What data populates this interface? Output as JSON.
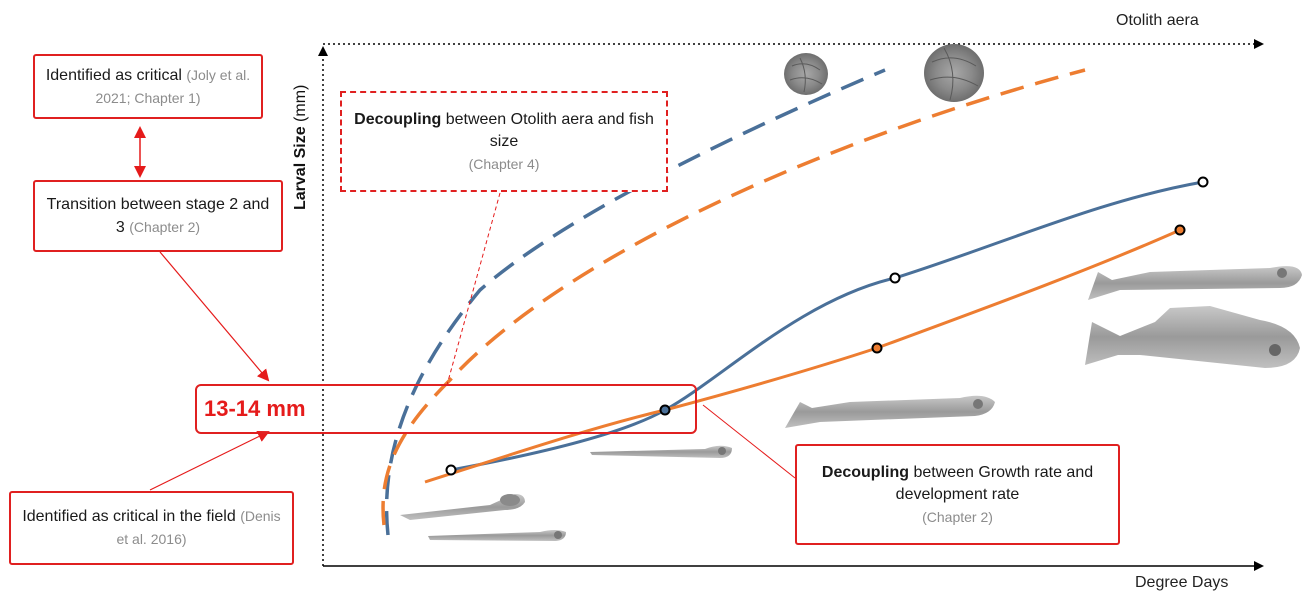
{
  "axes": {
    "x_label": "Degree Days",
    "y_label_bold": "Larval Size",
    "y_label_unit": " (mm)",
    "top_label": "Otolith aera"
  },
  "threshold": {
    "label": "13-14 mm"
  },
  "boxes": {
    "critical_joly": {
      "main": "Identified as critical ",
      "ref": "(Joly et al. 2021; Chapter 1)"
    },
    "transition": {
      "main": "Transition between stage 2 and 3 ",
      "ref": "(Chapter 2)"
    },
    "critical_field": {
      "main": "Identified as critical in the field ",
      "ref": "(Denis et al. 2016)"
    },
    "decoupling_otolith": {
      "bold": "Decoupling",
      "rest": " between Otolith aera and fish size",
      "ref": "(Chapter 4)"
    },
    "decoupling_growth": {
      "bold": "Decoupling",
      "rest": " between Growth rate and development rate",
      "ref": "(Chapter 2)"
    }
  },
  "colors": {
    "blue": "#4a7099",
    "orange": "#ed7d31",
    "red": "#e02020",
    "reference_grey": "#8c8c8c"
  },
  "icons": [
    "otolith-icon",
    "larva-icon"
  ]
}
